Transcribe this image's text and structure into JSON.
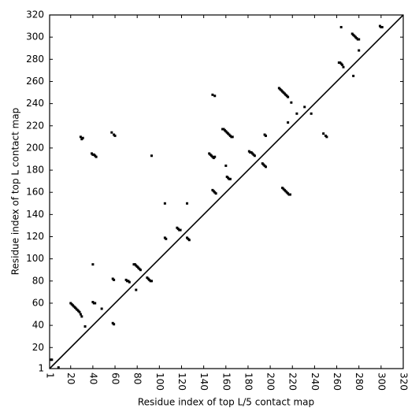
{
  "chart_data": {
    "type": "scatter",
    "xlabel": "Residue index of top L/5 contact map",
    "ylabel": "Residue index of top L contact map",
    "xlim": [
      1,
      320
    ],
    "ylim": [
      1,
      320
    ],
    "xticks": [
      1,
      20,
      40,
      60,
      80,
      100,
      120,
      140,
      160,
      180,
      200,
      220,
      240,
      260,
      280,
      300,
      320
    ],
    "yticks": [
      1,
      20,
      40,
      60,
      80,
      100,
      120,
      140,
      160,
      180,
      200,
      220,
      240,
      260,
      280,
      300,
      320
    ],
    "color": "#000000",
    "marker": "square",
    "diagonal": true,
    "x": [
      2,
      3,
      9,
      20,
      21,
      22,
      23,
      24,
      25,
      26,
      27,
      28,
      29,
      30,
      33,
      40,
      41,
      42,
      40,
      29,
      30,
      31,
      39,
      40,
      41,
      42,
      43,
      48,
      58,
      59,
      58,
      59,
      57,
      59,
      60,
      70,
      71,
      72,
      73,
      77,
      78,
      79,
      80,
      81,
      82,
      83,
      79,
      89,
      90,
      91,
      92,
      93,
      93,
      105,
      105,
      106,
      116,
      117,
      118,
      119,
      125,
      125,
      126,
      127,
      145,
      146,
      147,
      148,
      149,
      150,
      148,
      149,
      150,
      151,
      148,
      150,
      157,
      158,
      159,
      160,
      161,
      162,
      163,
      164,
      165,
      166,
      161,
      162,
      163,
      164,
      160,
      181,
      182,
      183,
      184,
      185,
      186,
      193,
      194,
      195,
      196,
      195,
      196,
      208,
      209,
      210,
      211,
      212,
      213,
      214,
      215,
      216,
      211,
      212,
      213,
      214,
      215,
      216,
      217,
      218,
      216,
      219,
      224,
      231,
      237,
      248,
      250,
      251,
      264,
      262,
      263,
      264,
      265,
      266,
      275,
      274,
      275,
      276,
      277,
      278,
      279,
      280,
      280,
      299,
      300,
      301
    ],
    "y": [
      9,
      9,
      2,
      60,
      59,
      58,
      57,
      56,
      55,
      54,
      53,
      52,
      50,
      48,
      39,
      61,
      60,
      60,
      95,
      210,
      208,
      209,
      195,
      194,
      194,
      193,
      192,
      55,
      82,
      81,
      42,
      41,
      214,
      212,
      211,
      81,
      80,
      80,
      79,
      95,
      95,
      94,
      93,
      92,
      91,
      90,
      72,
      83,
      82,
      81,
      80,
      80,
      193,
      150,
      119,
      118,
      128,
      127,
      126,
      126,
      150,
      119,
      118,
      117,
      195,
      194,
      193,
      192,
      191,
      192,
      162,
      161,
      160,
      159,
      248,
      247,
      217,
      217,
      216,
      215,
      214,
      213,
      212,
      211,
      210,
      210,
      174,
      173,
      172,
      172,
      184,
      197,
      196,
      196,
      195,
      194,
      193,
      186,
      185,
      184,
      183,
      212,
      211,
      254,
      253,
      252,
      251,
      250,
      249,
      248,
      247,
      246,
      164,
      163,
      162,
      161,
      160,
      159,
      158,
      158,
      223,
      241,
      231,
      237,
      231,
      213,
      211,
      210,
      309,
      277,
      277,
      276,
      275,
      273,
      265,
      303,
      302,
      301,
      300,
      299,
      298,
      298,
      288,
      310,
      309,
      309
    ]
  }
}
